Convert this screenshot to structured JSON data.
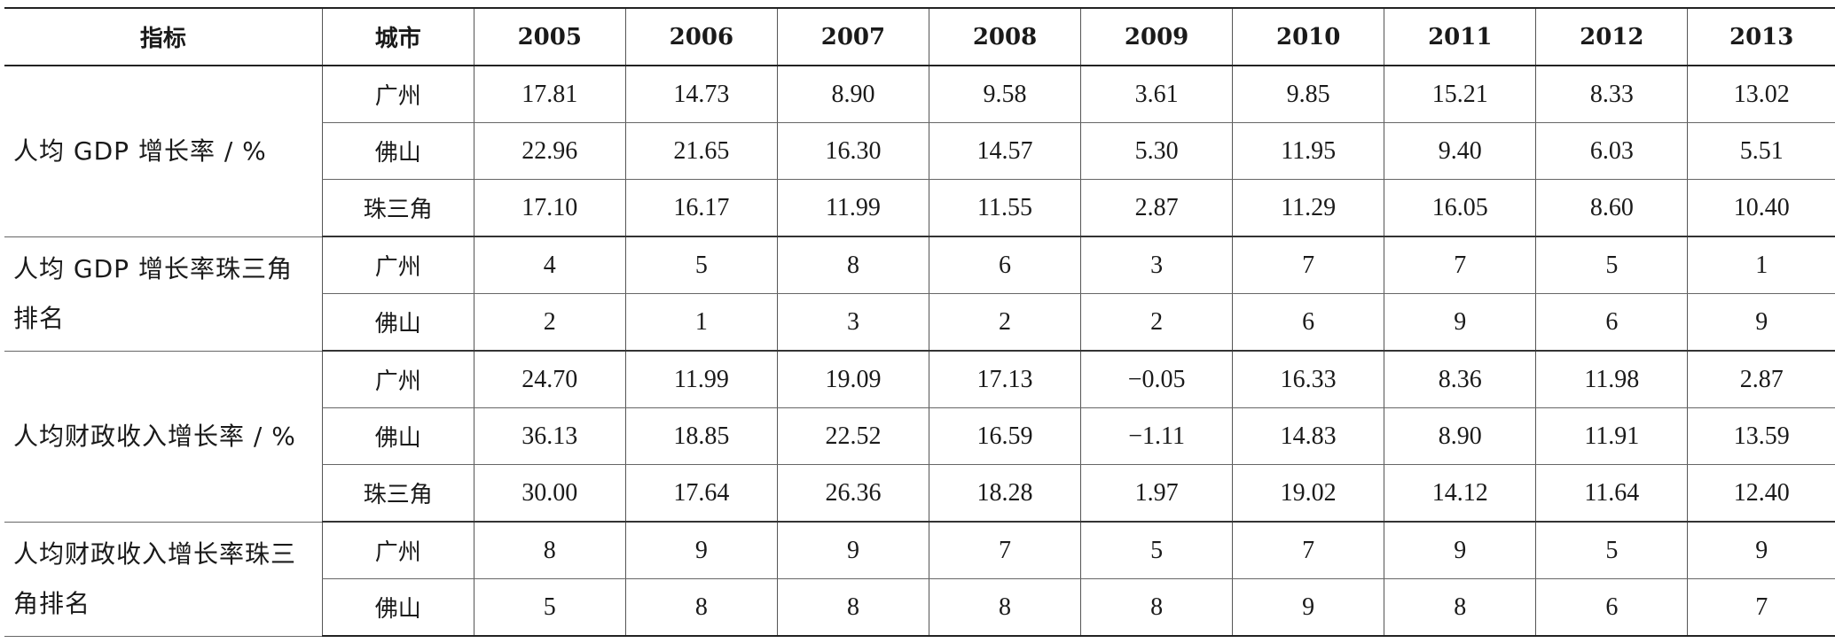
{
  "table": {
    "headers": [
      "指标",
      "城市",
      "2005",
      "2006",
      "2007",
      "2008",
      "2009",
      "2010",
      "2011",
      "2012",
      "2013"
    ],
    "groups": [
      {
        "indicator": "人均 GDP 增长率 / %",
        "rows": [
          {
            "city": "广州",
            "values": [
              "17.81",
              "14.73",
              "8.90",
              "9.58",
              "3.61",
              "9.85",
              "15.21",
              "8.33",
              "13.02"
            ]
          },
          {
            "city": "佛山",
            "values": [
              "22.96",
              "21.65",
              "16.30",
              "14.57",
              "5.30",
              "11.95",
              "9.40",
              "6.03",
              "5.51"
            ]
          },
          {
            "city": "珠三角",
            "values": [
              "17.10",
              "16.17",
              "11.99",
              "11.55",
              "2.87",
              "11.29",
              "16.05",
              "8.60",
              "10.40"
            ]
          }
        ]
      },
      {
        "indicator": "人均 GDP 增长率珠三角排名",
        "rows": [
          {
            "city": "广州",
            "values": [
              "4",
              "5",
              "8",
              "6",
              "3",
              "7",
              "7",
              "5",
              "1"
            ]
          },
          {
            "city": "佛山",
            "values": [
              "2",
              "1",
              "3",
              "2",
              "2",
              "6",
              "9",
              "6",
              "9"
            ]
          }
        ]
      },
      {
        "indicator": "人均财政收入增长率 / %",
        "rows": [
          {
            "city": "广州",
            "values": [
              "24.70",
              "11.99",
              "19.09",
              "17.13",
              "−0.05",
              "16.33",
              "8.36",
              "11.98",
              "2.87"
            ]
          },
          {
            "city": "佛山",
            "values": [
              "36.13",
              "18.85",
              "22.52",
              "16.59",
              "−1.11",
              "14.83",
              "8.90",
              "11.91",
              "13.59"
            ]
          },
          {
            "city": "珠三角",
            "values": [
              "30.00",
              "17.64",
              "26.36",
              "18.28",
              "1.97",
              "19.02",
              "14.12",
              "11.64",
              "12.40"
            ]
          }
        ]
      },
      {
        "indicator": "人均财政收入增长率珠三角排名",
        "rows": [
          {
            "city": "广州",
            "values": [
              "8",
              "9",
              "9",
              "7",
              "5",
              "7",
              "9",
              "5",
              "9"
            ]
          },
          {
            "city": "佛山",
            "values": [
              "5",
              "8",
              "8",
              "8",
              "8",
              "9",
              "8",
              "6",
              "7"
            ]
          }
        ]
      }
    ]
  }
}
